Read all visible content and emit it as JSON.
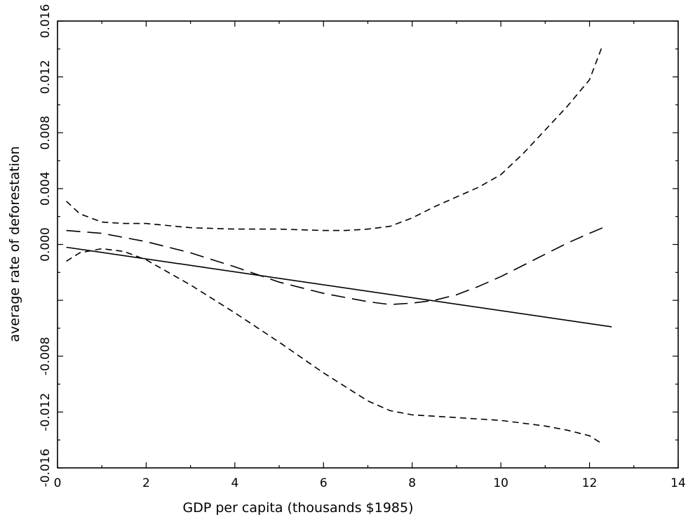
{
  "chart_data": {
    "type": "line",
    "title": "",
    "xlabel": "GDP per capita (thousands $1985)",
    "ylabel": "average rate of deforestation",
    "xlim": [
      0,
      14
    ],
    "ylim": [
      -0.016,
      0.016
    ],
    "x_ticks": [
      "0",
      "2",
      "4",
      "6",
      "8",
      "10",
      "12",
      "14"
    ],
    "y_ticks": [
      "-0.016",
      "-0.012",
      "-0.008",
      "",
      "0.000",
      "0.004",
      "0.008",
      "0.012",
      "0.016"
    ],
    "grid": false,
    "legend": "none",
    "series": [
      {
        "style": "solid",
        "x": [
          0.2,
          12.5
        ],
        "y": [
          -0.0002,
          -0.0059
        ]
      },
      {
        "style": "long-dash",
        "x": [
          0.2,
          1,
          2,
          3,
          4,
          5,
          6,
          7,
          7.5,
          8,
          8.5,
          9,
          9.5,
          10,
          10.5,
          11,
          11.5,
          12,
          12.3
        ],
        "y": [
          0.001,
          0.0008,
          0.0002,
          -0.0006,
          -0.0016,
          -0.0027,
          -0.0035,
          -0.0041,
          -0.0043,
          -0.0042,
          -0.004,
          -0.0036,
          -0.003,
          -0.0023,
          -0.0015,
          -0.0007,
          0.0001,
          0.0008,
          0.0012
        ]
      },
      {
        "style": "short-dash",
        "x": [
          0.2,
          0.5,
          1,
          1.5,
          2,
          3,
          4,
          5,
          6,
          6.5,
          7,
          7.5,
          8,
          8.5,
          9,
          9.5,
          10,
          10.5,
          11,
          11.5,
          12,
          12.3
        ],
        "y": [
          0.0031,
          0.0022,
          0.0016,
          0.0015,
          0.0015,
          0.0012,
          0.0011,
          0.0011,
          0.001,
          0.001,
          0.0011,
          0.0013,
          0.0019,
          0.0027,
          0.0034,
          0.0041,
          0.005,
          0.0065,
          0.0082,
          0.0099,
          0.0118,
          0.0143
        ]
      },
      {
        "style": "short-dash",
        "x": [
          0.2,
          0.5,
          1,
          1.5,
          2,
          3,
          4,
          5,
          6,
          7,
          7.5,
          8,
          8.5,
          9,
          9.5,
          10,
          10.5,
          11,
          11.5,
          12,
          12.3
        ],
        "y": [
          -0.0012,
          -0.0006,
          -0.0003,
          -0.0005,
          -0.0011,
          -0.0029,
          -0.0049,
          -0.007,
          -0.0092,
          -0.0112,
          -0.0119,
          -0.0122,
          -0.0123,
          -0.0124,
          -0.0125,
          -0.0126,
          -0.0128,
          -0.013,
          -0.0133,
          -0.0137,
          -0.0143
        ]
      }
    ]
  }
}
